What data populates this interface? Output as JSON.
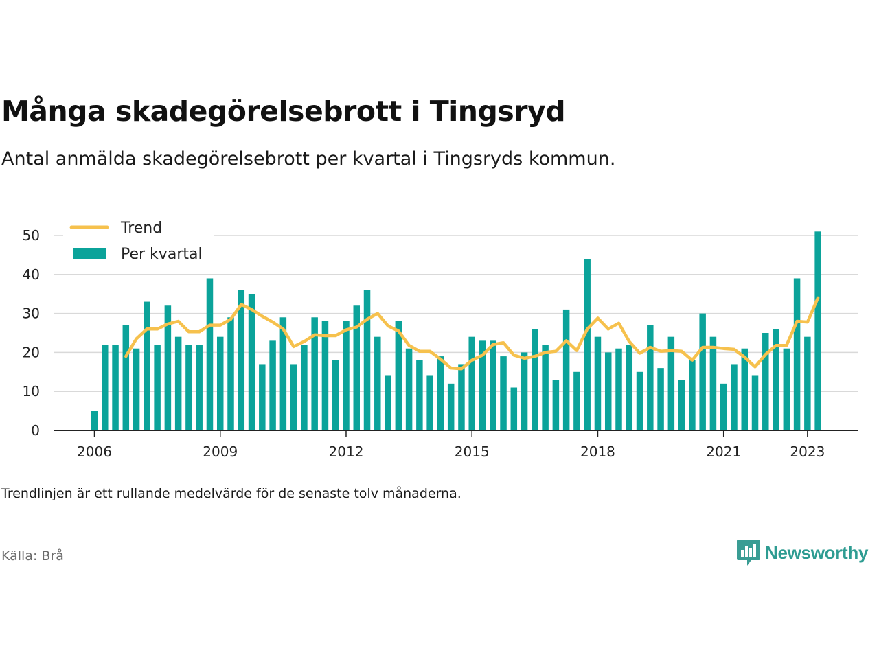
{
  "header": {
    "title": "Många skadegörelsebrott i Tingsryd",
    "subtitle": "Antal anmälda skadegörelsebrott per kvartal i Tingsryds kommun."
  },
  "footer": {
    "note": "Trendlinjen är ett rullande medelvärde för de senaste tolv månaderna.",
    "source": "Källa: Brå",
    "brand": "Newsworthy"
  },
  "colors": {
    "bar": "#0ba39a",
    "trend": "#f6c14d",
    "grid": "#d9d9d9",
    "axis": "#222222"
  },
  "chart_data": {
    "type": "bar",
    "x_axis": {
      "ticks": [
        "2006",
        "2009",
        "2012",
        "2015",
        "2018",
        "2021",
        "2023"
      ]
    },
    "ylim": [
      0,
      50
    ],
    "y_ticks": [
      0,
      10,
      20,
      30,
      40,
      50
    ],
    "grid": true,
    "legend_position": "top-left",
    "categories": [
      "2006 Q1",
      "2006 Q2",
      "2006 Q3",
      "2006 Q4",
      "2007 Q1",
      "2007 Q2",
      "2007 Q3",
      "2007 Q4",
      "2008 Q1",
      "2008 Q2",
      "2008 Q3",
      "2008 Q4",
      "2009 Q1",
      "2009 Q2",
      "2009 Q3",
      "2009 Q4",
      "2010 Q1",
      "2010 Q2",
      "2010 Q3",
      "2010 Q4",
      "2011 Q1",
      "2011 Q2",
      "2011 Q3",
      "2011 Q4",
      "2012 Q1",
      "2012 Q2",
      "2012 Q3",
      "2012 Q4",
      "2013 Q1",
      "2013 Q2",
      "2013 Q3",
      "2013 Q4",
      "2014 Q1",
      "2014 Q2",
      "2014 Q3",
      "2014 Q4",
      "2015 Q1",
      "2015 Q2",
      "2015 Q3",
      "2015 Q4",
      "2016 Q1",
      "2016 Q2",
      "2016 Q3",
      "2016 Q4",
      "2017 Q1",
      "2017 Q2",
      "2017 Q3",
      "2017 Q4",
      "2018 Q1",
      "2018 Q2",
      "2018 Q3",
      "2018 Q4",
      "2019 Q1",
      "2019 Q2",
      "2019 Q3",
      "2019 Q4",
      "2020 Q1",
      "2020 Q2",
      "2020 Q3",
      "2020 Q4",
      "2021 Q1",
      "2021 Q2",
      "2021 Q3",
      "2021 Q4",
      "2022 Q1",
      "2022 Q2",
      "2022 Q3",
      "2022 Q4",
      "2023 Q1",
      "2023 Q2"
    ],
    "series": [
      {
        "name": "Per kvartal",
        "type": "bar",
        "values": [
          5,
          22,
          22,
          27,
          21,
          33,
          22,
          32,
          24,
          22,
          22,
          39,
          24,
          29,
          36,
          35,
          17,
          23,
          29,
          17,
          22,
          29,
          28,
          18,
          28,
          32,
          36,
          24,
          14,
          28,
          21,
          18,
          14,
          19,
          12,
          17,
          24,
          23,
          23,
          19,
          11,
          20,
          26,
          22,
          13,
          31,
          15,
          44,
          24,
          20,
          21,
          22,
          15,
          27,
          16,
          24,
          13,
          18,
          30,
          24,
          12,
          17,
          21,
          14,
          25,
          26,
          21,
          39,
          24,
          51
        ]
      },
      {
        "name": "Trend",
        "type": "line",
        "values": [
          null,
          null,
          null,
          19,
          23.5,
          26,
          26,
          27.3,
          28,
          25.3,
          25.3,
          27,
          27,
          28.5,
          32.3,
          31,
          29.3,
          27.8,
          26,
          21.5,
          22.8,
          24.5,
          24.3,
          24.3,
          25.8,
          26.5,
          28.5,
          30,
          26.8,
          25.5,
          21.8,
          20.3,
          20.3,
          18.3,
          16,
          15.8,
          18,
          19.3,
          22,
          22.5,
          19.3,
          18.5,
          19,
          20,
          20.3,
          23,
          20.5,
          26,
          28.8,
          26,
          27.5,
          22.8,
          19.8,
          21.3,
          20.3,
          20.5,
          20.3,
          18,
          21.3,
          21.3,
          21,
          20.8,
          18.8,
          16.3,
          19.5,
          21.8,
          21.8,
          28,
          27.8,
          34
        ]
      }
    ]
  }
}
